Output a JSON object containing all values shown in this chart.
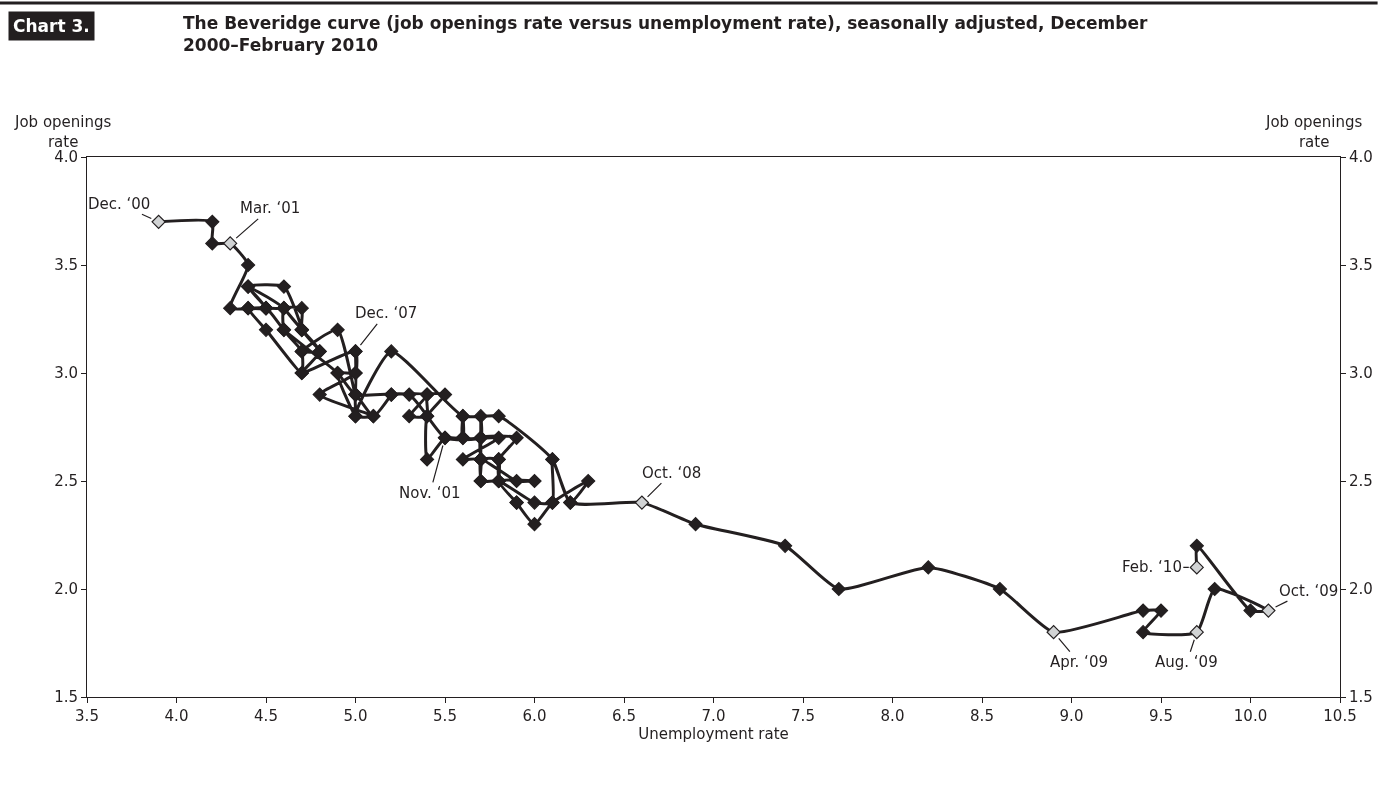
{
  "chart_data": {
    "type": "line",
    "title": "The Beveridge curve (job openings rate versus unemployment rate), seasonally adjusted, December 2000–February 2010",
    "xlabel": "Unemployment rate",
    "ylabel": "Job openings rate",
    "y2label": "Job openings rate",
    "annotations": [
      "Chart 3.",
      {
        "text": "Dec. ‘00",
        "x": 3.9,
        "y": 3.7
      },
      {
        "text": "Mar. ‘01",
        "x": 4.3,
        "y": 3.6
      },
      {
        "text": "Dec. ‘07",
        "x": 5.0,
        "y": 3.1
      },
      {
        "text": "Nov. ‘01",
        "x": 5.5,
        "y": 2.7
      },
      {
        "text": "Oct. ‘08",
        "x": 6.6,
        "y": 2.4
      },
      {
        "text": "Apr. ‘09",
        "x": 8.9,
        "y": 1.8
      },
      {
        "text": "Aug. ‘09",
        "x": 9.7,
        "y": 1.8
      },
      {
        "text": "Oct. ‘09",
        "x": 10.1,
        "y": 1.9
      },
      {
        "text": "Feb. ‘10",
        "x": 9.7,
        "y": 2.1
      }
    ],
    "series": [
      {
        "color": "#231f20",
        "x": [
          3.9,
          4.2,
          4.2,
          4.3,
          4.4,
          4.3,
          4.5,
          4.6,
          4.9,
          5.0,
          5.3,
          5.5,
          5.7,
          5.7,
          5.7,
          5.7,
          5.9,
          5.8,
          5.8,
          5.8,
          5.7,
          5.7,
          5.7,
          5.9,
          6.0,
          5.8,
          5.9,
          5.9,
          6.0,
          6.1,
          6.3,
          6.2,
          6.1,
          6.1,
          6.0,
          5.8,
          5.7,
          5.7,
          5.6,
          5.8,
          5.6,
          5.6,
          5.6,
          5.5,
          5.4,
          5.4,
          5.5,
          5.4,
          5.4,
          5.3,
          5.4,
          5.2,
          5.2,
          5.1,
          5.0,
          5.0,
          4.9,
          5.0,
          5.0,
          5.0,
          4.9,
          4.7,
          4.8,
          4.7,
          4.7,
          4.6,
          4.6,
          4.7,
          4.7,
          4.5,
          4.4,
          4.5,
          4.4,
          4.6,
          4.5,
          4.4,
          4.5,
          4.4,
          4.6,
          4.7,
          4.6,
          4.7,
          4.8,
          4.7,
          5.0,
          5.0,
          4.8,
          5.1,
          5.0,
          5.2,
          5.6,
          5.8,
          6.1,
          6.2,
          6.6,
          6.9,
          7.4,
          7.7,
          8.2,
          8.6,
          8.9,
          9.4,
          9.5,
          9.4,
          9.7,
          9.8,
          10.1,
          10.0,
          9.7,
          9.7
        ],
        "values": [
          3.7,
          3.7,
          3.6,
          3.6,
          3.5,
          3.3,
          3.3,
          3.2,
          3.0,
          2.9,
          2.9,
          2.7,
          2.7,
          2.8,
          2.6,
          2.7,
          2.7,
          2.6,
          2.5,
          2.6,
          2.6,
          2.5,
          2.6,
          2.5,
          2.5,
          2.5,
          2.4,
          2.4,
          2.3,
          2.4,
          2.5,
          2.4,
          2.6,
          2.4,
          2.4,
          2.5,
          2.5,
          2.6,
          2.6,
          2.7,
          2.7,
          2.8,
          2.7,
          2.7,
          2.6,
          2.8,
          2.9,
          2.9,
          2.8,
          2.8,
          2.9,
          2.9,
          2.9,
          2.8,
          2.9,
          2.8,
          3.0,
          3.0,
          3.1,
          2.9,
          3.2,
          3.1,
          3.1,
          3.2,
          3.3,
          3.3,
          3.2,
          3.1,
          3.0,
          3.2,
          3.3,
          3.3,
          3.4,
          3.3,
          3.3,
          3.3,
          3.3,
          3.4,
          3.4,
          3.2,
          3.3,
          3.2,
          3.1,
          3.0,
          3.1,
          3.0,
          2.9,
          2.8,
          2.8,
          3.1,
          2.8,
          2.8,
          2.6,
          2.4,
          2.4,
          2.3,
          2.2,
          2.0,
          2.1,
          2.0,
          1.8,
          1.9,
          1.9,
          1.8,
          1.8,
          2.0,
          1.9,
          1.9,
          2.2,
          2.1
        ],
        "colors": [
          "#d1d3d4",
          "#231f20",
          "#231f20",
          "#d1d3d4",
          "#231f20",
          "#231f20",
          "#231f20",
          "#231f20",
          "#231f20",
          "#231f20",
          "#231f20",
          "#231f20",
          "#231f20",
          "#231f20",
          "#231f20",
          "#231f20",
          "#231f20",
          "#231f20",
          "#231f20",
          "#231f20",
          "#231f20",
          "#231f20",
          "#231f20",
          "#231f20",
          "#231f20",
          "#231f20",
          "#231f20",
          "#231f20",
          "#231f20",
          "#231f20",
          "#231f20",
          "#231f20",
          "#231f20",
          "#231f20",
          "#231f20",
          "#231f20",
          "#231f20",
          "#231f20",
          "#231f20",
          "#231f20",
          "#231f20",
          "#231f20",
          "#231f20",
          "#231f20",
          "#231f20",
          "#231f20",
          "#231f20",
          "#231f20",
          "#231f20",
          "#231f20",
          "#231f20",
          "#231f20",
          "#231f20",
          "#231f20",
          "#231f20",
          "#231f20",
          "#231f20",
          "#231f20",
          "#231f20",
          "#231f20",
          "#231f20",
          "#231f20",
          "#231f20",
          "#231f20",
          "#231f20",
          "#231f20",
          "#231f20",
          "#231f20",
          "#231f20",
          "#231f20",
          "#231f20",
          "#231f20",
          "#231f20",
          "#231f20",
          "#231f20",
          "#231f20",
          "#231f20",
          "#231f20",
          "#231f20",
          "#231f20",
          "#231f20",
          "#231f20",
          "#231f20",
          "#231f20",
          "#231f20",
          "#231f20",
          "#231f20",
          "#231f20",
          "#231f20",
          "#231f20",
          "#231f20",
          "#231f20",
          "#231f20",
          "#231f20",
          "#d1d3d4",
          "#231f20",
          "#231f20",
          "#231f20",
          "#231f20",
          "#231f20",
          "#d1d3d4",
          "#231f20",
          "#231f20",
          "#231f20",
          "#d1d3d4",
          "#231f20",
          "#d1d3d4",
          "#231f20",
          "#231f20",
          "#d1d3d4"
        ]
      }
    ],
    "marker": "diamond",
    "line_style": "solid",
    "legend": false,
    "xlim": [
      3.5,
      10.5
    ],
    "xticks": [
      {
        "value": 3.5,
        "label": "3.5"
      },
      {
        "value": 4,
        "label": "4.0"
      },
      {
        "value": 4.5,
        "label": "4.5"
      },
      {
        "value": 5,
        "label": "5.0"
      },
      {
        "value": 5.5,
        "label": "5.5"
      },
      {
        "value": 6,
        "label": "6.0"
      },
      {
        "value": 6.5,
        "label": "6.5"
      },
      {
        "value": 7,
        "label": "7.0"
      },
      {
        "value": 7.5,
        "label": "7.5"
      },
      {
        "value": 8,
        "label": "8.0"
      },
      {
        "value": 8.5,
        "label": "8.5"
      },
      {
        "value": 9,
        "label": "9.0"
      },
      {
        "value": 9.5,
        "label": "9.5"
      },
      {
        "value": 10,
        "label": "10.0"
      },
      {
        "value": 10.5,
        "label": "10.5"
      }
    ],
    "ylim": [
      1.5,
      4.0
    ],
    "yticks": [
      {
        "value": 1.5,
        "label": "1.5"
      },
      {
        "value": 2,
        "label": "2.0"
      },
      {
        "value": 2.5,
        "label": "2.5"
      },
      {
        "value": 3,
        "label": "3.0"
      },
      {
        "value": 3.5,
        "label": "3.5"
      },
      {
        "value": 4,
        "label": "4.0"
      }
    ],
    "y2lim": [
      1.5,
      4.0
    ],
    "y2ticks": [
      {
        "value": 1.5,
        "label": "1.5"
      },
      {
        "value": 2,
        "label": "2.0"
      },
      {
        "value": 2.5,
        "label": "2.5"
      },
      {
        "value": 3,
        "label": "3.0"
      },
      {
        "value": 3.5,
        "label": "3.5"
      },
      {
        "value": 4,
        "label": "4.0"
      }
    ]
  }
}
